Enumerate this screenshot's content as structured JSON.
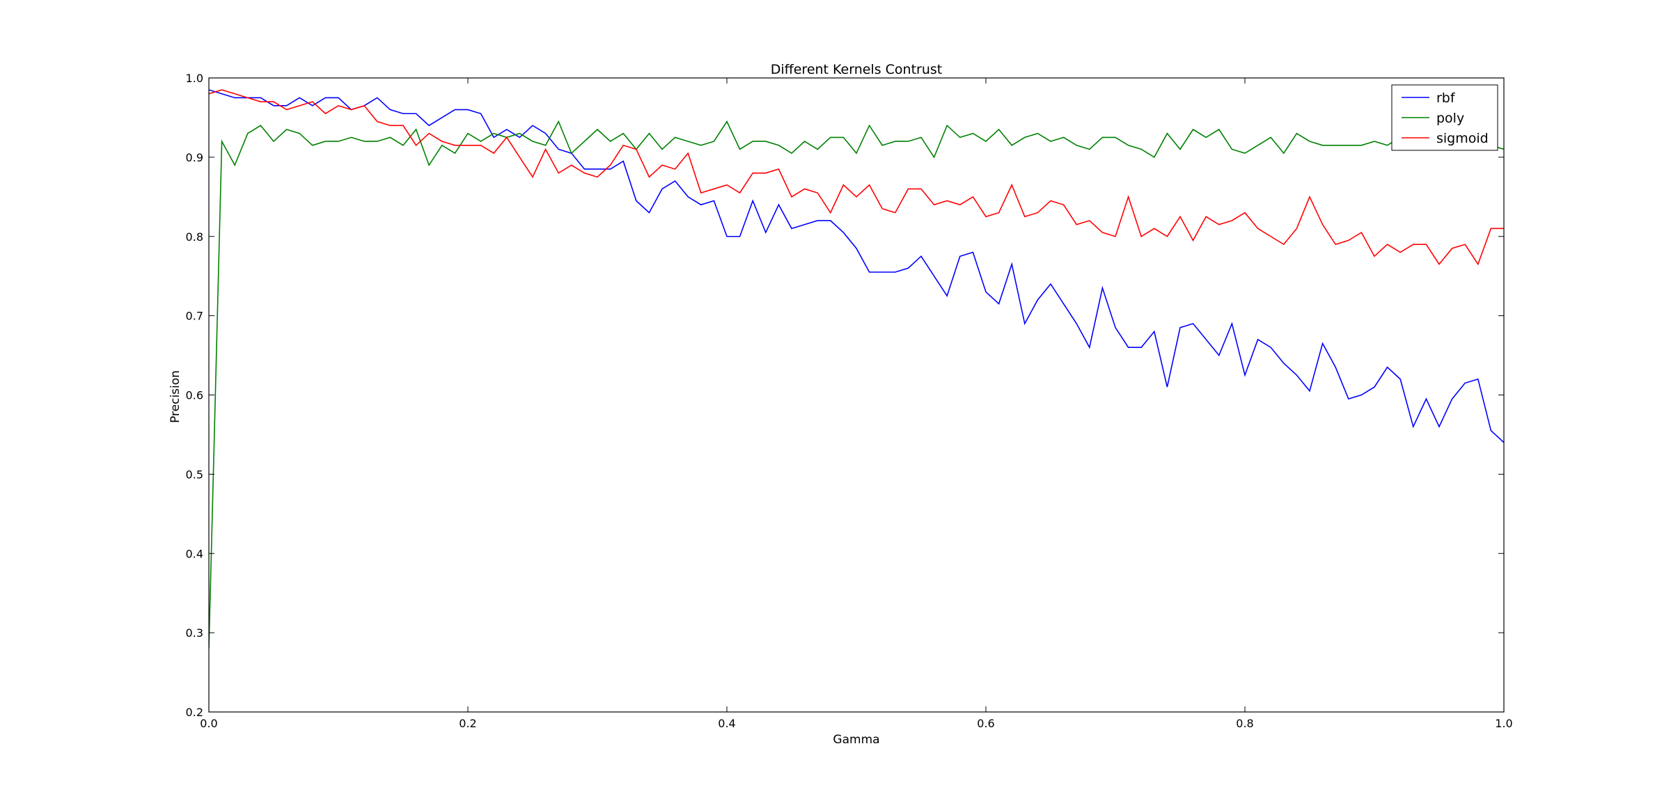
{
  "chart_data": {
    "type": "line",
    "title": "Different Kernels Contrust",
    "xlabel": "Gamma",
    "ylabel": "Precision",
    "xlim": [
      0.0,
      1.0
    ],
    "ylim": [
      0.2,
      1.0
    ],
    "grid": false,
    "legend_position": "top-right",
    "x_ticks": [
      0.0,
      0.2,
      0.4,
      0.6,
      0.8,
      1.0
    ],
    "x_tick_labels": [
      "0.0",
      "0.2",
      "0.4",
      "0.6",
      "0.8",
      "1.0"
    ],
    "y_ticks": [
      0.2,
      0.3,
      0.4,
      0.5,
      0.6,
      0.7,
      0.8,
      0.9,
      1.0
    ],
    "y_tick_labels": [
      "0.2",
      "0.3",
      "0.4",
      "0.5",
      "0.6",
      "0.7",
      "0.8",
      "0.9",
      "1.0"
    ],
    "x": [
      0.0,
      0.01,
      0.02,
      0.03,
      0.04,
      0.05,
      0.06,
      0.07,
      0.08,
      0.09,
      0.1,
      0.11,
      0.12,
      0.13,
      0.14,
      0.15,
      0.16,
      0.17,
      0.18,
      0.19,
      0.2,
      0.21,
      0.22,
      0.23,
      0.24,
      0.25,
      0.26,
      0.27,
      0.28,
      0.29,
      0.3,
      0.31,
      0.32,
      0.33,
      0.34,
      0.35,
      0.36,
      0.37,
      0.38,
      0.39,
      0.4,
      0.41,
      0.42,
      0.43,
      0.44,
      0.45,
      0.46,
      0.47,
      0.48,
      0.49,
      0.5,
      0.51,
      0.52,
      0.53,
      0.54,
      0.55,
      0.56,
      0.57,
      0.58,
      0.59,
      0.6,
      0.61,
      0.62,
      0.63,
      0.64,
      0.65,
      0.66,
      0.67,
      0.68,
      0.69,
      0.7,
      0.71,
      0.72,
      0.73,
      0.74,
      0.75,
      0.76,
      0.77,
      0.78,
      0.79,
      0.8,
      0.81,
      0.82,
      0.83,
      0.84,
      0.85,
      0.86,
      0.87,
      0.88,
      0.89,
      0.9,
      0.91,
      0.92,
      0.93,
      0.94,
      0.95,
      0.96,
      0.97,
      0.98,
      0.99,
      1.0
    ],
    "series": [
      {
        "name": "rbf",
        "color": "#0000ff",
        "values": [
          0.985,
          0.98,
          0.975,
          0.975,
          0.975,
          0.965,
          0.965,
          0.975,
          0.965,
          0.975,
          0.975,
          0.96,
          0.965,
          0.975,
          0.96,
          0.955,
          0.955,
          0.94,
          0.95,
          0.96,
          0.96,
          0.955,
          0.925,
          0.935,
          0.925,
          0.94,
          0.93,
          0.91,
          0.905,
          0.885,
          0.885,
          0.885,
          0.895,
          0.845,
          0.83,
          0.86,
          0.87,
          0.85,
          0.84,
          0.845,
          0.8,
          0.8,
          0.845,
          0.805,
          0.84,
          0.81,
          0.815,
          0.82,
          0.82,
          0.805,
          0.785,
          0.755,
          0.755,
          0.755,
          0.76,
          0.775,
          0.75,
          0.725,
          0.775,
          0.78,
          0.73,
          0.715,
          0.765,
          0.69,
          0.72,
          0.74,
          0.715,
          0.69,
          0.66,
          0.735,
          0.685,
          0.66,
          0.66,
          0.68,
          0.61,
          0.685,
          0.69,
          0.67,
          0.65,
          0.69,
          0.625,
          0.67,
          0.66,
          0.64,
          0.625,
          0.605,
          0.665,
          0.635,
          0.595,
          0.6,
          0.61,
          0.635,
          0.62,
          0.56,
          0.595,
          0.56,
          0.595,
          0.615,
          0.62,
          0.555,
          0.54
        ]
      },
      {
        "name": "poly",
        "color": "#008000",
        "values": [
          0.28,
          0.92,
          0.89,
          0.93,
          0.94,
          0.92,
          0.935,
          0.93,
          0.915,
          0.92,
          0.92,
          0.925,
          0.92,
          0.92,
          0.925,
          0.915,
          0.935,
          0.89,
          0.915,
          0.905,
          0.93,
          0.92,
          0.93,
          0.925,
          0.93,
          0.92,
          0.915,
          0.945,
          0.905,
          0.92,
          0.935,
          0.92,
          0.93,
          0.91,
          0.93,
          0.91,
          0.925,
          0.92,
          0.915,
          0.92,
          0.945,
          0.91,
          0.92,
          0.92,
          0.915,
          0.905,
          0.92,
          0.91,
          0.925,
          0.925,
          0.905,
          0.94,
          0.915,
          0.92,
          0.92,
          0.925,
          0.9,
          0.94,
          0.925,
          0.93,
          0.92,
          0.935,
          0.915,
          0.925,
          0.93,
          0.92,
          0.925,
          0.915,
          0.91,
          0.925,
          0.925,
          0.915,
          0.91,
          0.9,
          0.93,
          0.91,
          0.935,
          0.925,
          0.935,
          0.91,
          0.905,
          0.915,
          0.925,
          0.905,
          0.93,
          0.92,
          0.915,
          0.915,
          0.915,
          0.915,
          0.92,
          0.915,
          0.925,
          0.93,
          0.915,
          0.92,
          0.915,
          0.92,
          0.925,
          0.915,
          0.91
        ]
      },
      {
        "name": "sigmoid",
        "color": "#ff0000",
        "values": [
          0.98,
          0.985,
          0.98,
          0.975,
          0.97,
          0.97,
          0.96,
          0.965,
          0.97,
          0.955,
          0.965,
          0.96,
          0.965,
          0.945,
          0.94,
          0.94,
          0.915,
          0.93,
          0.92,
          0.915,
          0.915,
          0.915,
          0.905,
          0.925,
          0.9,
          0.875,
          0.91,
          0.88,
          0.89,
          0.88,
          0.875,
          0.89,
          0.915,
          0.91,
          0.875,
          0.89,
          0.885,
          0.905,
          0.855,
          0.86,
          0.865,
          0.855,
          0.88,
          0.88,
          0.885,
          0.85,
          0.86,
          0.855,
          0.83,
          0.865,
          0.85,
          0.865,
          0.835,
          0.83,
          0.86,
          0.86,
          0.84,
          0.845,
          0.84,
          0.85,
          0.825,
          0.83,
          0.865,
          0.825,
          0.83,
          0.845,
          0.84,
          0.815,
          0.82,
          0.805,
          0.8,
          0.85,
          0.8,
          0.81,
          0.8,
          0.825,
          0.795,
          0.825,
          0.815,
          0.82,
          0.83,
          0.81,
          0.8,
          0.79,
          0.81,
          0.85,
          0.815,
          0.79,
          0.795,
          0.805,
          0.775,
          0.79,
          0.78,
          0.79,
          0.79,
          0.765,
          0.785,
          0.79,
          0.765,
          0.81,
          0.81
        ]
      }
    ]
  }
}
